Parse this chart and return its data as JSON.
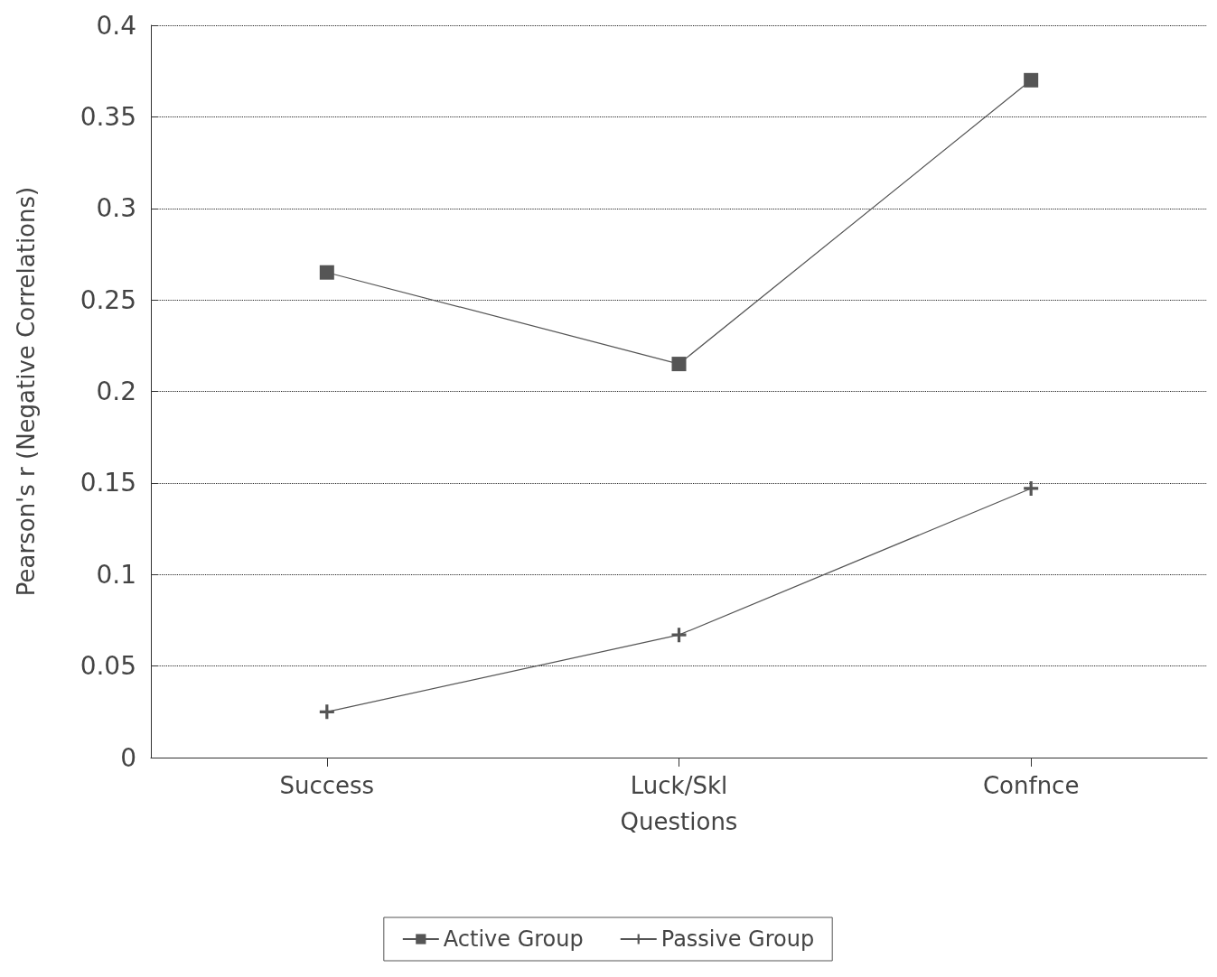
{
  "chart_data": {
    "type": "line",
    "xlabel": "Questions",
    "ylabel": "Pearson's r (Negative Correlations)",
    "categories": [
      "Success",
      "Luck/Skl",
      "Confnce"
    ],
    "series": [
      {
        "name": "Active Group",
        "color": "#555555",
        "marker": "square",
        "values": [
          0.265,
          0.215,
          0.37
        ]
      },
      {
        "name": "Passive Group",
        "color": "#555555",
        "marker": "cross",
        "values": [
          0.025,
          0.067,
          0.147
        ]
      }
    ],
    "ylim": [
      0,
      0.4
    ],
    "yticks": [
      0,
      0.05,
      0.1,
      0.15,
      0.2,
      0.25,
      0.3,
      0.35,
      0.4
    ],
    "grid": "y",
    "legend": "bottom",
    "line_style": "solid"
  }
}
